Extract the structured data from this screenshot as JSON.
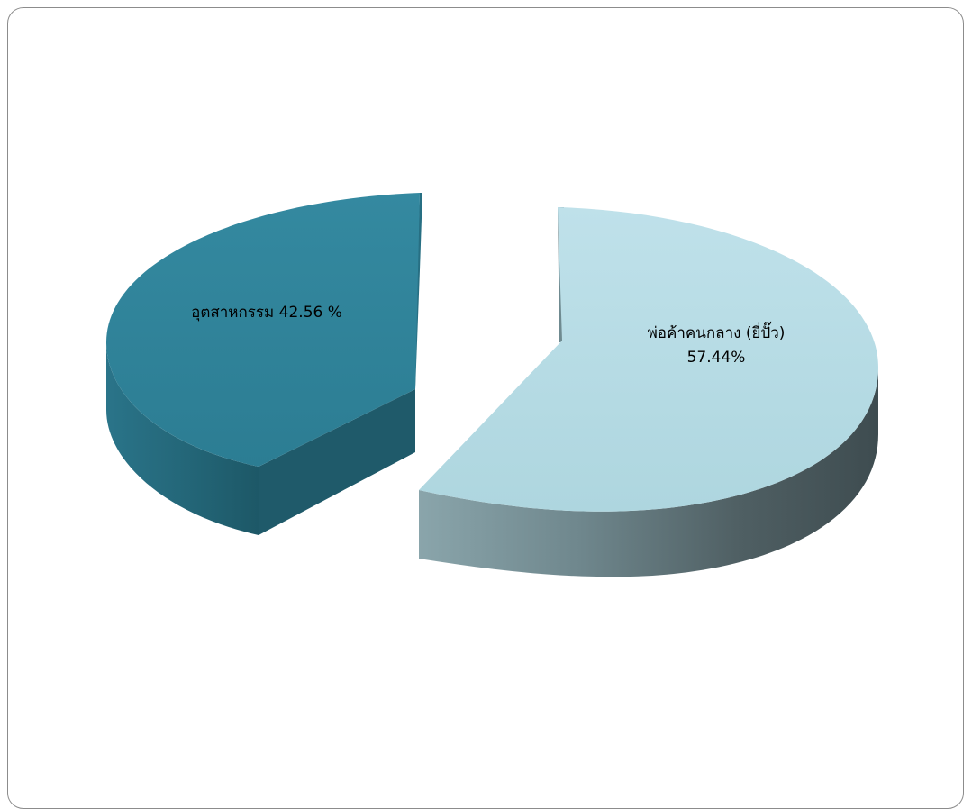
{
  "chart_data": {
    "type": "pie",
    "title": "",
    "style": "3d-exploded",
    "slices": [
      {
        "label": "อุตสาหกรรม",
        "value": 42.56,
        "label_text": "อุตสาหกรรม 42.56 %",
        "label_lines": [
          "อุตสาหกรรม 42.56 %"
        ],
        "color": "#2f8097",
        "side_color": "#225f70"
      },
      {
        "label": "พ่อค้าคนกลาง (ยี่ปั๊ว)",
        "value": 57.44,
        "label_text": "พ่อค้าคนกลาง (ยี่ปั๊ว) 57.44%",
        "label_lines": [
          "พ่อค้าคนกลาง (ยี่ปั๊ว)",
          "57.44%"
        ],
        "color": "#b5dbe4",
        "side_color": "#5b6e73"
      }
    ],
    "legend": "none",
    "grid": false
  }
}
